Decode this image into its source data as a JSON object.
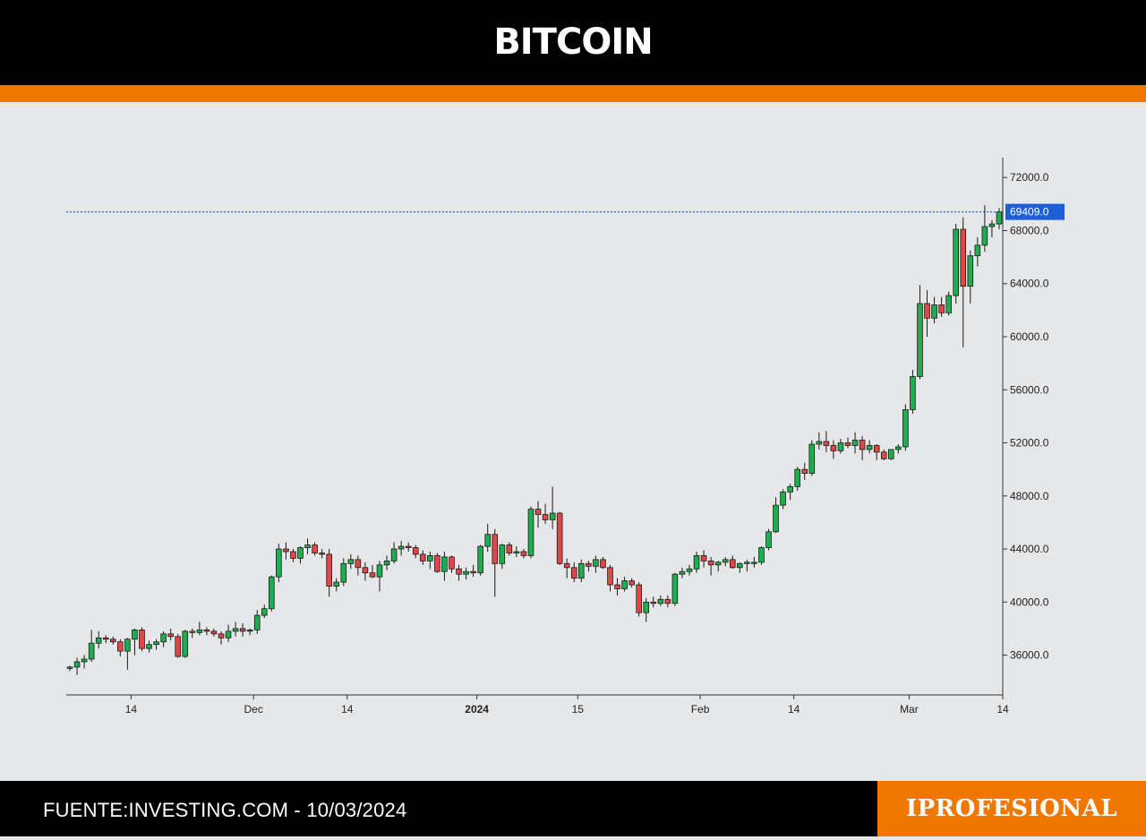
{
  "header": {
    "title": "BITCOIN"
  },
  "footer": {
    "source": "FUENTE:INVESTING.COM - 10/03/2024",
    "brand": "IPROFESIONAL"
  },
  "colors": {
    "header_bg": "#000000",
    "accent": "#f07800",
    "chart_bg": "#e6e7e9",
    "up_candle": "#1fae4f",
    "down_candle": "#e04848",
    "price_line": "#2563d8",
    "price_tag": "#1e5fd6"
  },
  "chart_data": {
    "type": "candlestick",
    "title": "BITCOIN",
    "y_axis_position": "right",
    "ylim": [
      33000,
      73500
    ],
    "y_ticks": [
      36000,
      40000,
      44000,
      48000,
      52000,
      56000,
      60000,
      64000,
      68000,
      72000
    ],
    "y_tick_labels": [
      "36000.0",
      "40000.0",
      "44000.0",
      "48000.0",
      "52000.0",
      "56000.0",
      "60000.0",
      "64000.0",
      "68000.0",
      "72000.0"
    ],
    "x_tick_labels": [
      {
        "label": "14",
        "date": "2023-11-14",
        "bold": false
      },
      {
        "label": "Dec",
        "date": "2023-12-01",
        "bold": false
      },
      {
        "label": "14",
        "date": "2023-12-14",
        "bold": false
      },
      {
        "label": "2024",
        "date": "2024-01-01",
        "bold": true
      },
      {
        "label": "15",
        "date": "2024-01-15",
        "bold": false
      },
      {
        "label": "Feb",
        "date": "2024-02-01",
        "bold": false
      },
      {
        "label": "14",
        "date": "2024-02-14",
        "bold": false
      },
      {
        "label": "Mar",
        "date": "2024-03-01",
        "bold": false
      },
      {
        "label": "14",
        "date": "2024-03-14",
        "bold": false
      }
    ],
    "xlim": [
      "2023-11-05",
      "2024-03-14"
    ],
    "current_price": 69409.0,
    "current_price_label": "69409.0",
    "grid": false,
    "legend": "none",
    "series": [
      {
        "name": "",
        "dates_start": "2023-11-05",
        "ohlc": [
          [
            35000,
            35200,
            34800,
            35100
          ],
          [
            35100,
            35800,
            34500,
            35500
          ],
          [
            35500,
            36000,
            35000,
            35700
          ],
          [
            35700,
            37900,
            35500,
            36900
          ],
          [
            36900,
            37800,
            36500,
            37300
          ],
          [
            37300,
            37500,
            36900,
            37200
          ],
          [
            37200,
            37400,
            36800,
            37000
          ],
          [
            37000,
            37200,
            35900,
            36300
          ],
          [
            36300,
            37300,
            34900,
            37200
          ],
          [
            37200,
            38000,
            36000,
            37900
          ],
          [
            37900,
            38100,
            36300,
            36500
          ],
          [
            36500,
            37100,
            36200,
            36800
          ],
          [
            36800,
            37200,
            36400,
            37000
          ],
          [
            37000,
            37800,
            36600,
            37600
          ],
          [
            37600,
            38000,
            37100,
            37400
          ],
          [
            37400,
            37600,
            35800,
            35900
          ],
          [
            35900,
            37900,
            35800,
            37800
          ],
          [
            37800,
            38000,
            37300,
            37700
          ],
          [
            37700,
            38500,
            37500,
            37900
          ],
          [
            37900,
            38100,
            37500,
            37800
          ],
          [
            37800,
            38000,
            37400,
            37600
          ],
          [
            37600,
            37800,
            36800,
            37300
          ],
          [
            37300,
            38300,
            37000,
            37800
          ],
          [
            37800,
            38500,
            37400,
            38000
          ],
          [
            38000,
            38400,
            37400,
            37800
          ],
          [
            37800,
            38000,
            37500,
            37900
          ],
          [
            37900,
            39400,
            37600,
            39000
          ],
          [
            39000,
            39800,
            38800,
            39500
          ],
          [
            39500,
            42000,
            39300,
            41900
          ],
          [
            41900,
            44400,
            41500,
            44000
          ],
          [
            44000,
            44500,
            43200,
            43800
          ],
          [
            43800,
            44000,
            43000,
            43300
          ],
          [
            43300,
            44200,
            42900,
            44100
          ],
          [
            44100,
            44800,
            43600,
            44300
          ],
          [
            44300,
            44500,
            43500,
            43700
          ],
          [
            43700,
            44000,
            43300,
            43600
          ],
          [
            43600,
            44000,
            40400,
            41200
          ],
          [
            41200,
            41800,
            40800,
            41500
          ],
          [
            41500,
            43300,
            41200,
            42900
          ],
          [
            42900,
            43600,
            42500,
            43200
          ],
          [
            43200,
            43500,
            42000,
            42600
          ],
          [
            42600,
            43000,
            41600,
            42200
          ],
          [
            42200,
            42800,
            41800,
            41900
          ],
          [
            41900,
            43100,
            40800,
            42800
          ],
          [
            42800,
            43500,
            42400,
            43100
          ],
          [
            43100,
            44500,
            42900,
            44000
          ],
          [
            44000,
            44600,
            43500,
            44200
          ],
          [
            44200,
            44500,
            43800,
            44100
          ],
          [
            44100,
            44300,
            43300,
            43600
          ],
          [
            43600,
            43900,
            42800,
            43100
          ],
          [
            43100,
            43800,
            42500,
            43500
          ],
          [
            43500,
            43700,
            42200,
            42300
          ],
          [
            42300,
            43800,
            41600,
            43400
          ],
          [
            43400,
            43500,
            42200,
            42500
          ],
          [
            42500,
            42800,
            41600,
            42100
          ],
          [
            42100,
            42600,
            41700,
            42300
          ],
          [
            42300,
            42800,
            41900,
            42200
          ],
          [
            42200,
            44300,
            42000,
            44200
          ],
          [
            44200,
            45900,
            43800,
            45100
          ],
          [
            45100,
            45500,
            40400,
            42900
          ],
          [
            42900,
            44400,
            42500,
            44300
          ],
          [
            44300,
            44500,
            43500,
            43700
          ],
          [
            43700,
            44200,
            43400,
            43800
          ],
          [
            43800,
            44000,
            43300,
            43500
          ],
          [
            43500,
            47200,
            43300,
            47000
          ],
          [
            47000,
            47600,
            45600,
            46600
          ],
          [
            46600,
            47400,
            45900,
            46200
          ],
          [
            46200,
            48700,
            45500,
            46700
          ],
          [
            46700,
            46800,
            42800,
            42900
          ],
          [
            42900,
            43300,
            41800,
            42600
          ],
          [
            42600,
            43000,
            41500,
            41800
          ],
          [
            41800,
            43200,
            41500,
            42900
          ],
          [
            42900,
            43100,
            42300,
            42700
          ],
          [
            42700,
            43500,
            42200,
            43200
          ],
          [
            43200,
            43400,
            42500,
            42600
          ],
          [
            42600,
            42800,
            40800,
            41300
          ],
          [
            41300,
            41800,
            40500,
            41000
          ],
          [
            41000,
            41900,
            40800,
            41600
          ],
          [
            41600,
            41800,
            41100,
            41300
          ],
          [
            41300,
            41500,
            38900,
            39200
          ],
          [
            39200,
            40300,
            38500,
            40000
          ],
          [
            40000,
            40400,
            39600,
            39900
          ],
          [
            39900,
            40500,
            39700,
            40200
          ],
          [
            40200,
            40500,
            39600,
            39900
          ],
          [
            39900,
            42200,
            39700,
            42100
          ],
          [
            42100,
            42600,
            41800,
            42300
          ],
          [
            42300,
            42800,
            42000,
            42500
          ],
          [
            42500,
            43800,
            42200,
            43500
          ],
          [
            43500,
            43900,
            42600,
            43100
          ],
          [
            43100,
            43400,
            42000,
            42800
          ],
          [
            42800,
            43100,
            42300,
            43000
          ],
          [
            43000,
            43400,
            42700,
            43200
          ],
          [
            43200,
            43500,
            42500,
            42600
          ],
          [
            42600,
            43000,
            42200,
            42900
          ],
          [
            42900,
            43200,
            42300,
            43000
          ],
          [
            43000,
            43400,
            42600,
            43000
          ],
          [
            43000,
            44200,
            42800,
            44100
          ],
          [
            44100,
            45500,
            43900,
            45300
          ],
          [
            45300,
            47900,
            45200,
            47300
          ],
          [
            47300,
            48500,
            47000,
            48300
          ],
          [
            48300,
            48900,
            47700,
            48700
          ],
          [
            48700,
            50200,
            48400,
            50000
          ],
          [
            50000,
            50500,
            49200,
            49700
          ],
          [
            49700,
            52200,
            49500,
            51900
          ],
          [
            51900,
            52800,
            51500,
            52100
          ],
          [
            52100,
            52900,
            51300,
            51800
          ],
          [
            51800,
            52200,
            50800,
            51400
          ],
          [
            51400,
            52300,
            51200,
            52000
          ],
          [
            52000,
            52400,
            51600,
            51800
          ],
          [
            51800,
            52800,
            51200,
            52200
          ],
          [
            52200,
            52500,
            50700,
            51500
          ],
          [
            51500,
            52200,
            51200,
            51800
          ],
          [
            51800,
            51900,
            50700,
            51300
          ],
          [
            51300,
            51500,
            50700,
            50800
          ],
          [
            50800,
            51500,
            50700,
            51500
          ],
          [
            51500,
            51900,
            51200,
            51700
          ],
          [
            51700,
            54900,
            51400,
            54500
          ],
          [
            54500,
            57500,
            54200,
            57000
          ],
          [
            57000,
            63900,
            56800,
            62500
          ],
          [
            62500,
            63500,
            60000,
            61400
          ],
          [
            61400,
            63000,
            61000,
            62400
          ],
          [
            62400,
            63000,
            61500,
            61800
          ],
          [
            61800,
            63400,
            61600,
            63100
          ],
          [
            63100,
            68500,
            62500,
            68100
          ],
          [
            68100,
            69000,
            59200,
            63800
          ],
          [
            63800,
            66500,
            62500,
            66100
          ],
          [
            66100,
            67500,
            65300,
            66900
          ],
          [
            66900,
            69900,
            66400,
            68300
          ],
          [
            68300,
            68800,
            67500,
            68500
          ],
          [
            68500,
            69700,
            68100,
            69400
          ]
        ]
      }
    ]
  }
}
